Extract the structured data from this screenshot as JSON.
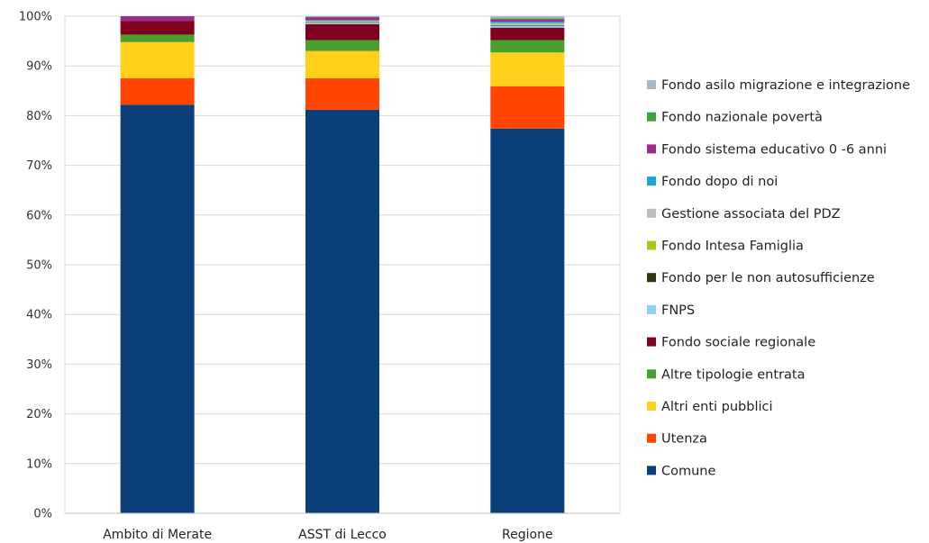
{
  "chart_data": {
    "type": "bar",
    "stacked": true,
    "title": "",
    "xlabel": "",
    "ylabel": "",
    "ylim": [
      0,
      100
    ],
    "y_ticks": [
      "0%",
      "10%",
      "20%",
      "30%",
      "40%",
      "50%",
      "60%",
      "70%",
      "80%",
      "90%",
      "100%"
    ],
    "grid": true,
    "legend_position": "right",
    "categories": [
      "Ambito di Merate",
      "ASST di Lecco",
      "Regione"
    ],
    "series": [
      {
        "name": "Comune",
        "color": "#0B3F7A",
        "values": [
          82.2,
          81.2,
          77.4
        ]
      },
      {
        "name": "Utenza",
        "color": "#FF4500",
        "values": [
          5.3,
          6.3,
          8.5
        ]
      },
      {
        "name": "Altri enti pubblici",
        "color": "#FFD11A",
        "values": [
          7.3,
          5.5,
          6.8
        ]
      },
      {
        "name": "Altre tipologie entrata",
        "color": "#4AA02C",
        "values": [
          1.5,
          2.2,
          2.5
        ]
      },
      {
        "name": "Fondo sociale regionale",
        "color": "#800020",
        "values": [
          2.7,
          3.2,
          2.5
        ]
      },
      {
        "name": "FNPS",
        "color": "#8FD0F7",
        "values": [
          0.0,
          0.3,
          0.4
        ]
      },
      {
        "name": "Fondo per le non autosufficienze",
        "color": "#2B3A0F",
        "values": [
          0.0,
          0.1,
          0.1
        ]
      },
      {
        "name": "Fondo Intesa Famiglia",
        "color": "#A5C81A",
        "values": [
          0.0,
          0.1,
          0.1
        ]
      },
      {
        "name": "Gestione associata del PDZ",
        "color": "#BDBDBD",
        "values": [
          0.0,
          0.2,
          0.3
        ]
      },
      {
        "name": "Fondo dopo di noi",
        "color": "#1BA5D8",
        "values": [
          0.0,
          0.1,
          0.3
        ]
      },
      {
        "name": "Fondo sistema educativo 0  -6 anni",
        "color": "#9B2D8E",
        "values": [
          1.0,
          0.6,
          0.5
        ]
      },
      {
        "name": "Fondo nazionale povertà",
        "color": "#3FA33F",
        "values": [
          0.0,
          0.1,
          0.2
        ]
      },
      {
        "name": "Fondo asilo migrazione e integrazione",
        "color": "#A9B8C6",
        "values": [
          0.0,
          0.1,
          0.4
        ]
      }
    ]
  }
}
